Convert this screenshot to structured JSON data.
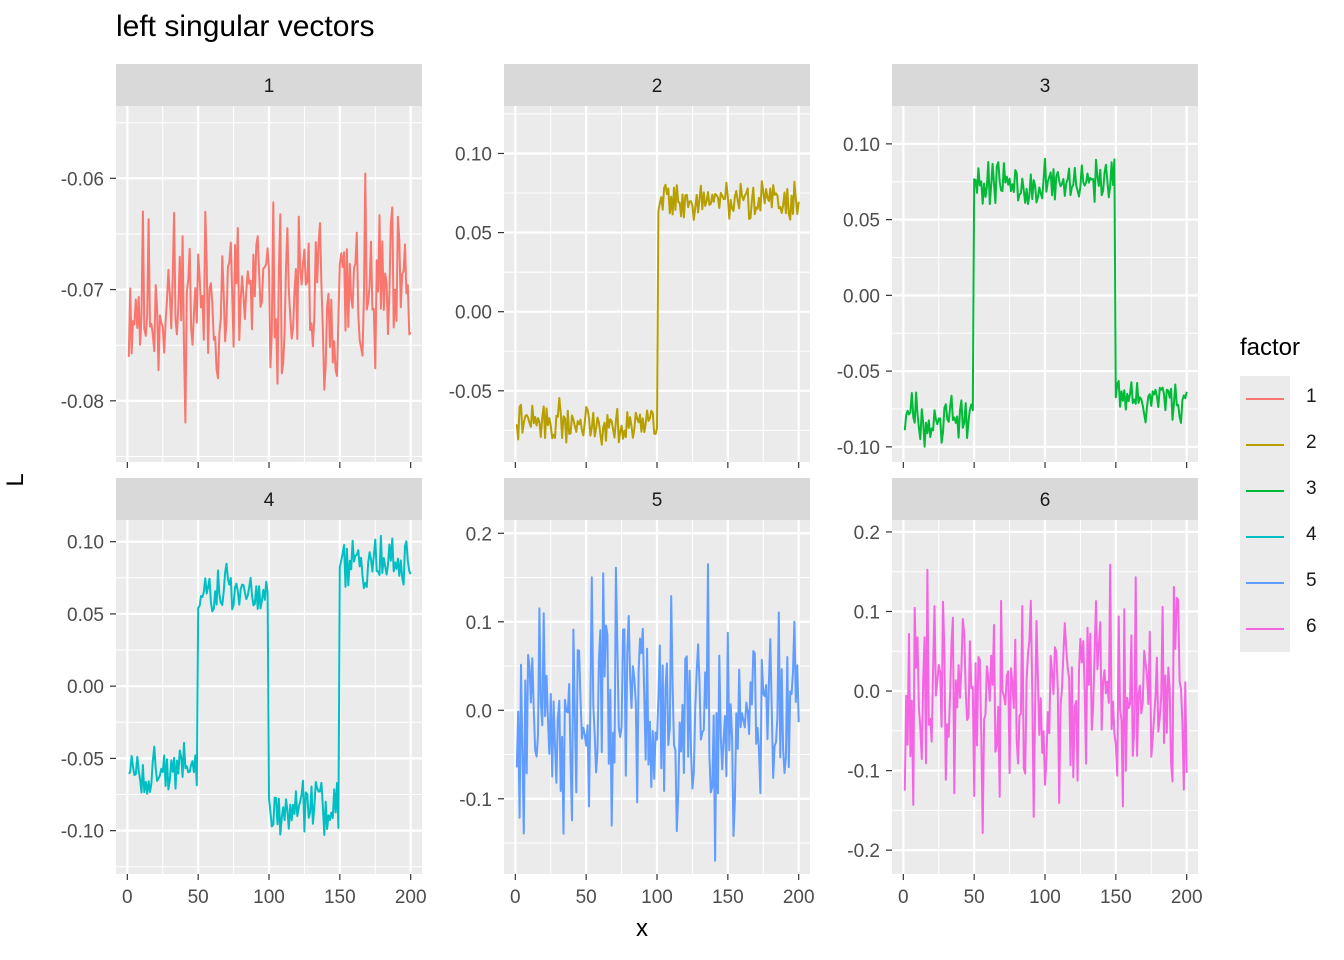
{
  "title": "left singular vectors",
  "xlabel": "x",
  "ylabel": "L",
  "legend": {
    "title": "factor",
    "entries": [
      {
        "label": "1",
        "color": "#F8766D"
      },
      {
        "label": "2",
        "color": "#B79F00"
      },
      {
        "label": "3",
        "color": "#00BA38"
      },
      {
        "label": "4",
        "color": "#00BFC4"
      },
      {
        "label": "5",
        "color": "#619CFF"
      },
      {
        "label": "6",
        "color": "#F564E3"
      }
    ]
  },
  "chart_data": [
    {
      "type": "line",
      "strip": "1",
      "color": "#F8766D",
      "xlim": [
        -8,
        208
      ],
      "ylim": [
        -0.0855,
        -0.0535
      ],
      "xticks": [
        0,
        50,
        100,
        150,
        200
      ],
      "xtick_labels": [
        "0",
        "50",
        "100",
        "150",
        "200"
      ],
      "yticks": [
        -0.08,
        -0.07,
        -0.06
      ],
      "ytick_labels": [
        "-0.08",
        "-0.07",
        "-0.06"
      ],
      "series": [
        {
          "profile": [
            [
              0,
              -0.071
            ],
            [
              200,
              -0.071
            ]
          ],
          "noise": 0.004,
          "seed": 11,
          "min": -0.0845,
          "max": -0.055
        }
      ]
    },
    {
      "type": "line",
      "strip": "2",
      "color": "#B79F00",
      "xlim": [
        -8,
        208
      ],
      "ylim": [
        -0.095,
        0.13
      ],
      "xticks": [
        0,
        50,
        100,
        150,
        200
      ],
      "xtick_labels": [
        "0",
        "50",
        "100",
        "150",
        "200"
      ],
      "yticks": [
        -0.05,
        0.0,
        0.05,
        0.1
      ],
      "ytick_labels": [
        "-0.05",
        "0.00",
        "0.05",
        "0.10"
      ],
      "series": [
        {
          "profile": [
            [
              0,
              -0.07
            ],
            [
              100,
              -0.07
            ],
            [
              101,
              0.07
            ],
            [
              200,
              0.07
            ]
          ],
          "noise": 0.006,
          "seed": 22,
          "min": -0.088,
          "max": 0.095
        }
      ]
    },
    {
      "type": "line",
      "strip": "3",
      "color": "#00BA38",
      "xlim": [
        -8,
        208
      ],
      "ylim": [
        -0.11,
        0.125
      ],
      "xticks": [
        0,
        50,
        100,
        150,
        200
      ],
      "xtick_labels": [
        "0",
        "50",
        "100",
        "150",
        "200"
      ],
      "yticks": [
        -0.1,
        -0.05,
        0.0,
        0.05,
        0.1
      ],
      "ytick_labels": [
        "-0.10",
        "-0.05",
        "0.00",
        "0.05",
        "0.10"
      ],
      "series": [
        {
          "profile": [
            [
              0,
              -0.08
            ],
            [
              49,
              -0.08
            ],
            [
              50,
              0.075
            ],
            [
              149,
              0.072
            ],
            [
              150,
              -0.068
            ],
            [
              200,
              -0.068
            ]
          ],
          "noise": 0.008,
          "seed": 33,
          "min": -0.1,
          "max": 0.11
        }
      ]
    },
    {
      "type": "line",
      "strip": "4",
      "color": "#00BFC4",
      "xlim": [
        -8,
        208
      ],
      "ylim": [
        -0.13,
        0.115
      ],
      "xticks": [
        0,
        50,
        100,
        150,
        200
      ],
      "xtick_labels": [
        "0",
        "50",
        "100",
        "150",
        "200"
      ],
      "yticks": [
        -0.1,
        -0.05,
        0.0,
        0.05,
        0.1
      ],
      "ytick_labels": [
        "-0.10",
        "-0.05",
        "0.00",
        "0.05",
        "0.10"
      ],
      "series": [
        {
          "profile": [
            [
              0,
              -0.06
            ],
            [
              49,
              -0.06
            ],
            [
              50,
              0.065
            ],
            [
              99,
              0.065
            ],
            [
              100,
              -0.085
            ],
            [
              149,
              -0.085
            ],
            [
              150,
              0.085
            ],
            [
              200,
              0.085
            ]
          ],
          "noise": 0.009,
          "seed": 44,
          "min": -0.123,
          "max": 0.104
        }
      ]
    },
    {
      "type": "line",
      "strip": "5",
      "color": "#619CFF",
      "xlim": [
        -8,
        208
      ],
      "ylim": [
        -0.185,
        0.215
      ],
      "xticks": [
        0,
        50,
        100,
        150,
        200
      ],
      "xtick_labels": [
        "0",
        "50",
        "100",
        "150",
        "200"
      ],
      "yticks": [
        -0.1,
        0.0,
        0.1,
        0.2
      ],
      "ytick_labels": [
        "-0.1",
        "0.0",
        "0.1",
        "0.2"
      ],
      "series": [
        {
          "profile": [
            [
              0,
              0.0
            ],
            [
              200,
              0.0
            ]
          ],
          "noise": 0.065,
          "seed": 55,
          "min": -0.17,
          "max": 0.195
        }
      ]
    },
    {
      "type": "line",
      "strip": "6",
      "color": "#F564E3",
      "xlim": [
        -8,
        208
      ],
      "ylim": [
        -0.23,
        0.215
      ],
      "xticks": [
        0,
        50,
        100,
        150,
        200
      ],
      "xtick_labels": [
        "0",
        "50",
        "100",
        "150",
        "200"
      ],
      "yticks": [
        -0.2,
        -0.1,
        0.0,
        0.1,
        0.2
      ],
      "ytick_labels": [
        "-0.2",
        "-0.1",
        "0.0",
        "0.1",
        "0.2"
      ],
      "series": [
        {
          "profile": [
            [
              0,
              0.0
            ],
            [
              200,
              0.0
            ]
          ],
          "noise": 0.065,
          "seed": 66,
          "min": -0.21,
          "max": 0.19
        }
      ]
    }
  ]
}
